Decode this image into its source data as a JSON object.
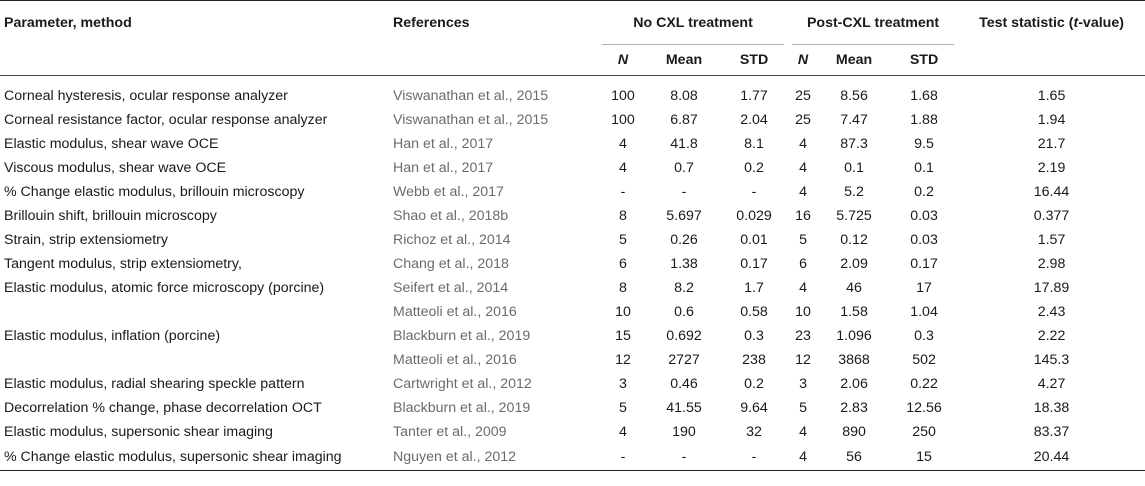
{
  "header": {
    "param_method": "Parameter, method",
    "references": "References",
    "no_cxl": "No CXL treatment",
    "post_cxl": "Post-CXL treatment",
    "test_stat_prefix": "Test statistic (",
    "test_stat_t": "t",
    "test_stat_suffix": "-value)",
    "n": "N",
    "mean": "Mean",
    "std": "STD"
  },
  "rows": [
    {
      "param": "Corneal hysteresis, ocular response analyzer",
      "ref": "Viswanathan et al., 2015",
      "n1": "100",
      "m1": "8.08",
      "s1": "1.77",
      "n2": "25",
      "m2": "8.56",
      "s2": "1.68",
      "t": "1.65"
    },
    {
      "param": "Corneal resistance factor, ocular response analyzer",
      "ref": "Viswanathan et al., 2015",
      "n1": "100",
      "m1": "6.87",
      "s1": "2.04",
      "n2": "25",
      "m2": "7.47",
      "s2": "1.88",
      "t": "1.94"
    },
    {
      "param": "Elastic modulus, shear wave OCE",
      "ref": "Han et al., 2017",
      "n1": "4",
      "m1": "41.8",
      "s1": "8.1",
      "n2": "4",
      "m2": "87.3",
      "s2": "9.5",
      "t": "21.7"
    },
    {
      "param": "Viscous modulus, shear wave OCE",
      "ref": "Han et al., 2017",
      "n1": "4",
      "m1": "0.7",
      "s1": "0.2",
      "n2": "4",
      "m2": "0.1",
      "s2": "0.1",
      "t": "2.19"
    },
    {
      "param": "% Change elastic modulus, brillouin microscopy",
      "ref": "Webb et al., 2017",
      "n1": "-",
      "m1": "-",
      "s1": "-",
      "n2": "4",
      "m2": "5.2",
      "s2": "0.2",
      "t": "16.44"
    },
    {
      "param": "Brillouin shift, brillouin microscopy",
      "ref": "Shao et al., 2018b",
      "n1": "8",
      "m1": "5.697",
      "s1": "0.029",
      "n2": "16",
      "m2": "5.725",
      "s2": "0.03",
      "t": "0.377"
    },
    {
      "param": "Strain, strip extensiometry",
      "ref": "Richoz et al., 2014",
      "n1": "5",
      "m1": "0.26",
      "s1": "0.01",
      "n2": "5",
      "m2": "0.12",
      "s2": "0.03",
      "t": "1.57"
    },
    {
      "param": "Tangent modulus, strip extensiometry,",
      "ref": "Chang et al., 2018",
      "n1": "6",
      "m1": "1.38",
      "s1": "0.17",
      "n2": "6",
      "m2": "2.09",
      "s2": "0.17",
      "t": "2.98"
    },
    {
      "param": "Elastic modulus, atomic force microscopy (porcine)",
      "ref": "Seifert et al., 2014",
      "n1": "8",
      "m1": "8.2",
      "s1": "1.7",
      "n2": "4",
      "m2": "46",
      "s2": "17",
      "t": "17.89"
    },
    {
      "param": "",
      "ref": "Matteoli et al., 2016",
      "n1": "10",
      "m1": "0.6",
      "s1": "0.58",
      "n2": "10",
      "m2": "1.58",
      "s2": "1.04",
      "t": "2.43"
    },
    {
      "param": "Elastic modulus, inflation (porcine)",
      "ref": "Blackburn et al., 2019",
      "n1": "15",
      "m1": "0.692",
      "s1": "0.3",
      "n2": "23",
      "m2": "1.096",
      "s2": "0.3",
      "t": "2.22"
    },
    {
      "param": "",
      "ref": "Matteoli et al., 2016",
      "n1": "12",
      "m1": "2727",
      "s1": "238",
      "n2": "12",
      "m2": "3868",
      "s2": "502",
      "t": "145.3"
    },
    {
      "param": "Elastic modulus, radial shearing speckle pattern",
      "ref": "Cartwright et al., 2012",
      "n1": "3",
      "m1": "0.46",
      "s1": "0.2",
      "n2": "3",
      "m2": "2.06",
      "s2": "0.22",
      "t": "4.27"
    },
    {
      "param": "Decorrelation % change, phase decorrelation OCT",
      "ref": "Blackburn et al., 2019",
      "n1": "5",
      "m1": "41.55",
      "s1": "9.64",
      "n2": "5",
      "m2": "2.83",
      "s2": "12.56",
      "t": "18.38"
    },
    {
      "param": "Elastic modulus, supersonic shear imaging",
      "ref": "Tanter et al., 2009",
      "n1": "4",
      "m1": "190",
      "s1": "32",
      "n2": "4",
      "m2": "890",
      "s2": "250",
      "t": "83.37"
    },
    {
      "param": "% Change elastic modulus, supersonic shear imaging",
      "ref": "Nguyen et al., 2012",
      "n1": "-",
      "m1": "-",
      "s1": "-",
      "n2": "4",
      "m2": "56",
      "s2": "15",
      "t": "20.44"
    }
  ]
}
